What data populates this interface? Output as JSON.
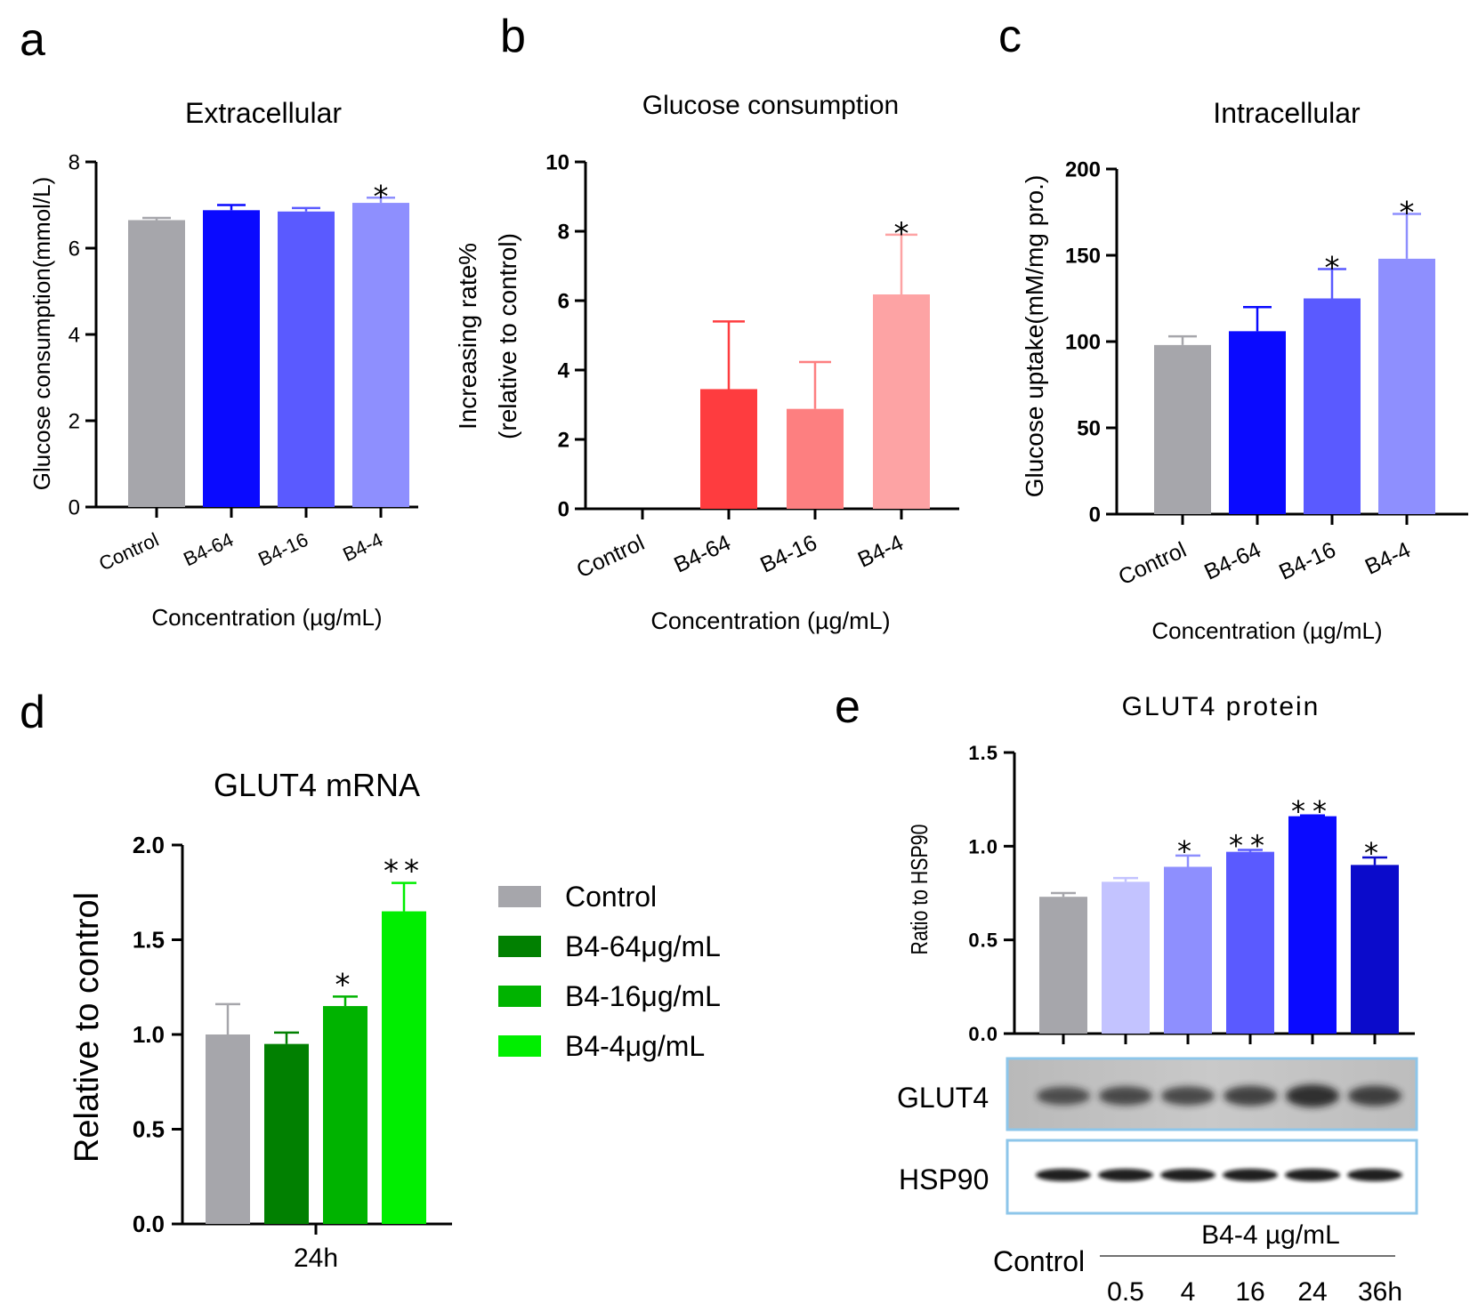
{
  "chart_data": [
    {
      "panel": "a",
      "type": "bar",
      "title": "Extracellular",
      "xlabel": "Concentration (µg/mL)",
      "ylabel": "Glucose consumption(mmol/L)",
      "ylim": [
        0,
        8
      ],
      "yticks": [
        0,
        2,
        4,
        6,
        8
      ],
      "categories": [
        "Control",
        "B4-64",
        "B4-16",
        "B4-4"
      ],
      "values": [
        6.65,
        6.88,
        6.85,
        7.05
      ],
      "errors": [
        0.05,
        0.12,
        0.08,
        0.12
      ],
      "significance": [
        "",
        "",
        "",
        "*"
      ],
      "colors": [
        "#a6a6ab",
        "#0a0aff",
        "#5a5aff",
        "#8e8ffe"
      ]
    },
    {
      "panel": "b",
      "type": "bar",
      "title": "Glucose consumption",
      "xlabel": "Concentration (µg/mL)",
      "ylabel": [
        "Increasing rate%",
        "(relative to control)"
      ],
      "ylim": [
        0,
        10
      ],
      "yticks": [
        0,
        2,
        4,
        6,
        8,
        10
      ],
      "categories": [
        "Control",
        "B4-64",
        "B4-16",
        "B4-4"
      ],
      "values": [
        0,
        3.45,
        2.88,
        6.18
      ],
      "errors": [
        0,
        1.95,
        1.35,
        1.72
      ],
      "significance": [
        "",
        "",
        "",
        "*"
      ],
      "colors": [
        "#ffffff",
        "#fe3c3f",
        "#fd7f80",
        "#fda3a4"
      ]
    },
    {
      "panel": "c",
      "type": "bar",
      "title": "Intracellular",
      "xlabel": "Concentration (µg/mL)",
      "ylabel": "Glucose uptake(mM/mg pro.)",
      "ylim": [
        0,
        200
      ],
      "yticks": [
        0,
        50,
        100,
        150,
        200
      ],
      "categories": [
        "Control",
        "B4-64",
        "B4-16",
        "B4-4"
      ],
      "values": [
        98,
        106,
        125,
        148
      ],
      "errors": [
        5,
        14,
        17,
        26
      ],
      "significance": [
        "",
        "",
        "*",
        "*"
      ],
      "colors": [
        "#a6a6ab",
        "#0a0aff",
        "#5a5aff",
        "#8e8ffe"
      ]
    },
    {
      "panel": "d",
      "type": "bar",
      "title": "GLUT4 mRNA",
      "xlabel": "",
      "ylabel": "Relative to control",
      "ylim": [
        0,
        2.0
      ],
      "yticks": [
        "0.0",
        "0.5",
        "1.0",
        "1.5",
        "2.0"
      ],
      "categories": [
        "24h"
      ],
      "series": [
        {
          "name": "Control",
          "values": [
            1.0
          ],
          "errors": [
            0.16
          ],
          "significance": [
            ""
          ],
          "color": "#a6a6ab"
        },
        {
          "name": "B4-64μg/mL",
          "values": [
            0.95
          ],
          "errors": [
            0.06
          ],
          "significance": [
            ""
          ],
          "color": "#018001"
        },
        {
          "name": "B4-16μg/mL",
          "values": [
            1.15
          ],
          "errors": [
            0.05
          ],
          "significance": [
            "*"
          ],
          "color": "#00b300"
        },
        {
          "name": "B4-4μg/mL",
          "values": [
            1.65
          ],
          "errors": [
            0.15
          ],
          "significance": [
            "**"
          ],
          "color": "#00ee00"
        }
      ],
      "legend": "right"
    },
    {
      "panel": "e",
      "type": "bar",
      "title": "GLUT4 protein",
      "xlabel": "",
      "ylabel": "Ratio to HSP90",
      "ylim": [
        0,
        1.5
      ],
      "yticks": [
        "0.0",
        "0.5",
        "1.0",
        "1.5"
      ],
      "categories": [
        "Control",
        "0.5",
        "4",
        "16",
        "24",
        "36h"
      ],
      "values": [
        0.73,
        0.81,
        0.89,
        0.97,
        1.16,
        0.9
      ],
      "errors": [
        0.02,
        0.02,
        0.06,
        0.01,
        0.004,
        0.04
      ],
      "significance": [
        "",
        "",
        "*",
        "**",
        "**",
        "*"
      ],
      "colors": [
        "#a6a6ab",
        "#c3c3ff",
        "#8e8ffe",
        "#5a5aff",
        "#0a0aff",
        "#0b0bcb"
      ],
      "blot_labels": [
        "GLUT4",
        "HSP90"
      ],
      "treatment_label": "B4-4 µg/mL",
      "control_label": "Control"
    }
  ]
}
